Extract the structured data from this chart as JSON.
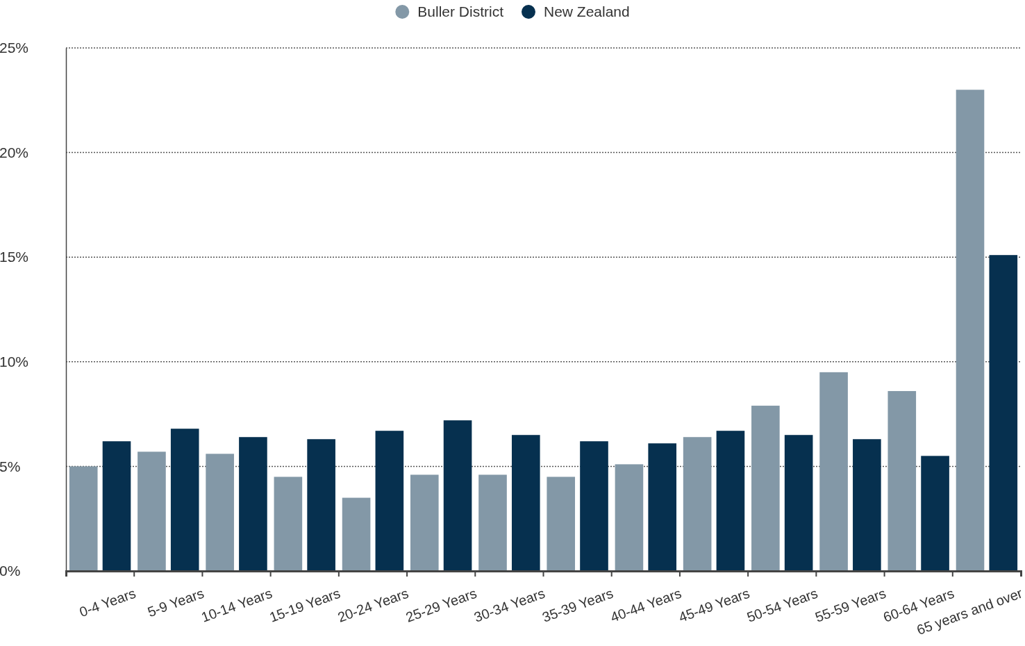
{
  "chart_data": {
    "type": "bar",
    "categories": [
      "0-4 Years",
      "5-9 Years",
      "10-14 Years",
      "15-19 Years",
      "20-24 Years",
      "25-29 Years",
      "30-34 Years",
      "35-39 Years",
      "40-44 Years",
      "45-49 Years",
      "50-54 Years",
      "55-59 Years",
      "60-64 Years",
      "65 years and over"
    ],
    "series": [
      {
        "name": "Buller District",
        "color": "#8398a7",
        "values": [
          5.0,
          5.7,
          5.6,
          4.5,
          3.5,
          4.6,
          4.6,
          4.5,
          5.1,
          6.4,
          7.9,
          9.5,
          8.6,
          23.0
        ]
      },
      {
        "name": "New Zealand",
        "color": "#06304f",
        "values": [
          6.2,
          6.8,
          6.4,
          6.3,
          6.7,
          7.2,
          6.5,
          6.2,
          6.1,
          6.7,
          6.5,
          6.3,
          5.5,
          15.1
        ]
      }
    ],
    "ylim": [
      0,
      25
    ],
    "yticks": [
      {
        "value": 0,
        "label": "0%"
      },
      {
        "value": 5,
        "label": "5%"
      },
      {
        "value": 10,
        "label": "10%"
      },
      {
        "value": 15,
        "label": "15%"
      },
      {
        "value": 20,
        "label": "20%"
      },
      {
        "value": 25,
        "label": "25%"
      }
    ],
    "grid": "y",
    "legend": "top"
  }
}
